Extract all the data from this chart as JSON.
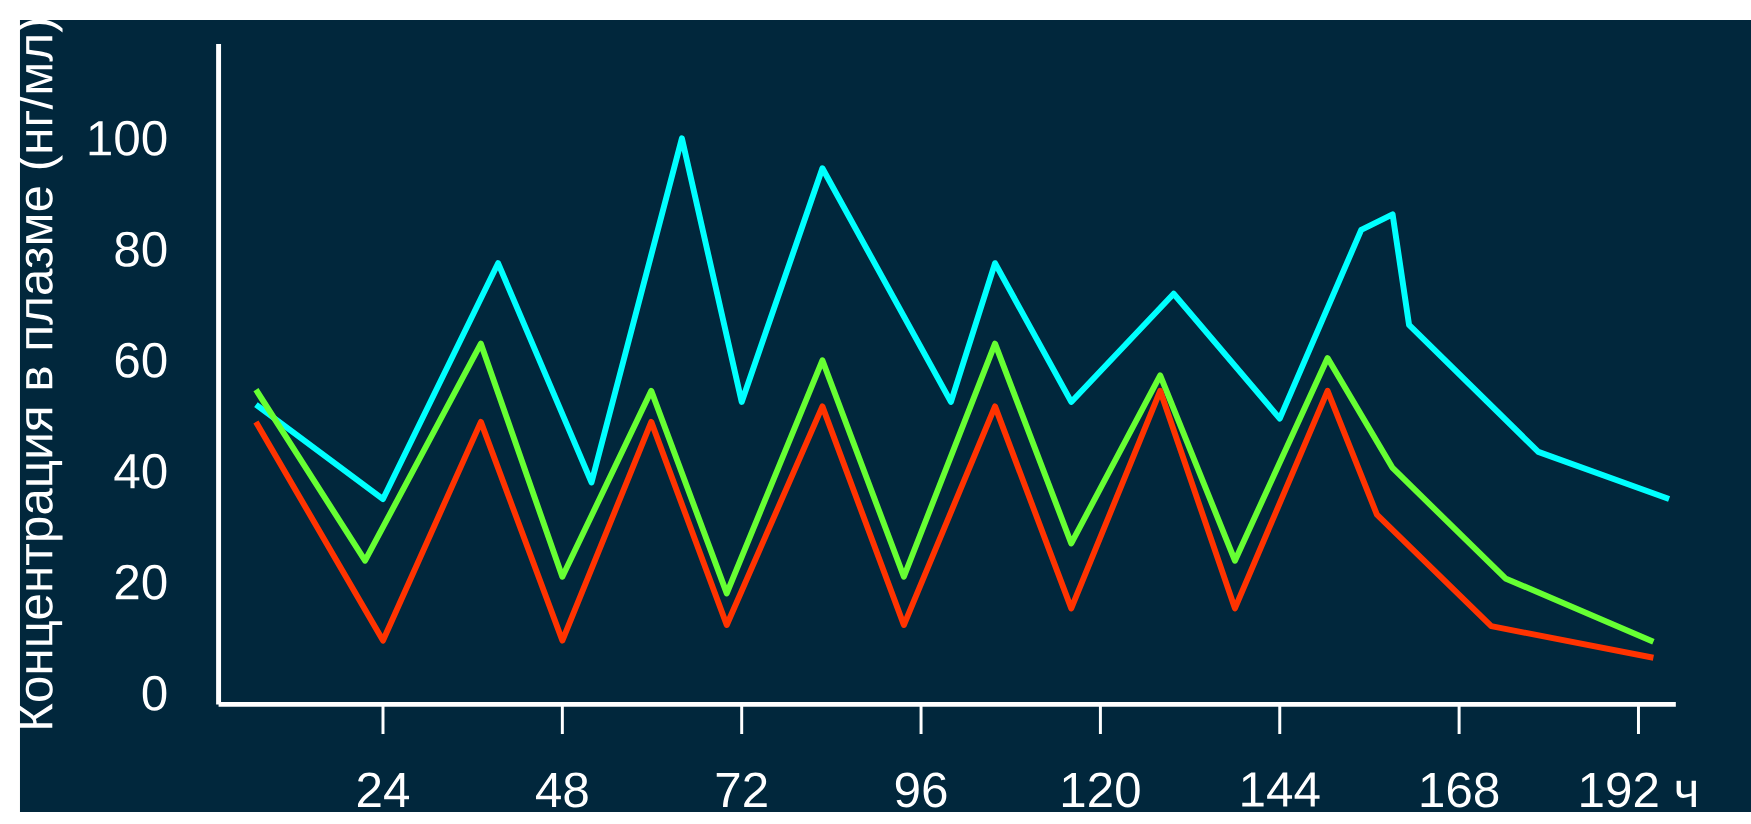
{
  "chart_data": {
    "type": "line",
    "ylabel": "Концентрация в плазме (нг/мл)",
    "xlim": [
      2,
      197
    ],
    "ylim": [
      -2,
      117
    ],
    "xticks": [
      24,
      48,
      72,
      96,
      120,
      144,
      168,
      {
        "value": 192,
        "label": "192 ч"
      }
    ],
    "yticks": [
      0,
      20,
      40,
      60,
      80,
      100
    ],
    "series": [
      {
        "color": "#00ffff",
        "x": [
          7,
          24,
          39.4,
          51.9,
          64,
          72,
          82.8,
          100,
          105.9,
          116.1,
          129.8,
          144,
          154.9,
          159.1,
          161.3,
          178.6,
          196.1
        ],
        "values": [
          52,
          35,
          77.5,
          38,
          100,
          52.5,
          94.6,
          52.5,
          77.5,
          52.5,
          72,
          49.5,
          83.5,
          86.3,
          66.4,
          43.5,
          35
        ]
      },
      {
        "color": "#66ff33",
        "x": [
          7,
          21.6,
          37.1,
          48,
          59.9,
          70,
          82.8,
          93.7,
          105.9,
          116.1,
          128,
          138,
          150.4,
          159.1,
          174.2,
          194
        ],
        "values": [
          54.7,
          23.9,
          63,
          21,
          54.5,
          18,
          60,
          21,
          63,
          27,
          57.3,
          23.9,
          60.4,
          40.6,
          20.7,
          9.3
        ]
      },
      {
        "color": "#ff3300",
        "x": [
          7,
          24,
          37.1,
          48,
          59.9,
          70,
          82.8,
          93.7,
          105.9,
          116.1,
          128,
          138,
          150.4,
          157,
          172.3,
          194
        ],
        "values": [
          48.9,
          9.5,
          48.9,
          9.5,
          48.9,
          12.3,
          51.7,
          12.3,
          51.7,
          15.3,
          54.5,
          15.3,
          54.5,
          32.2,
          12.1,
          6.4
        ]
      }
    ]
  }
}
